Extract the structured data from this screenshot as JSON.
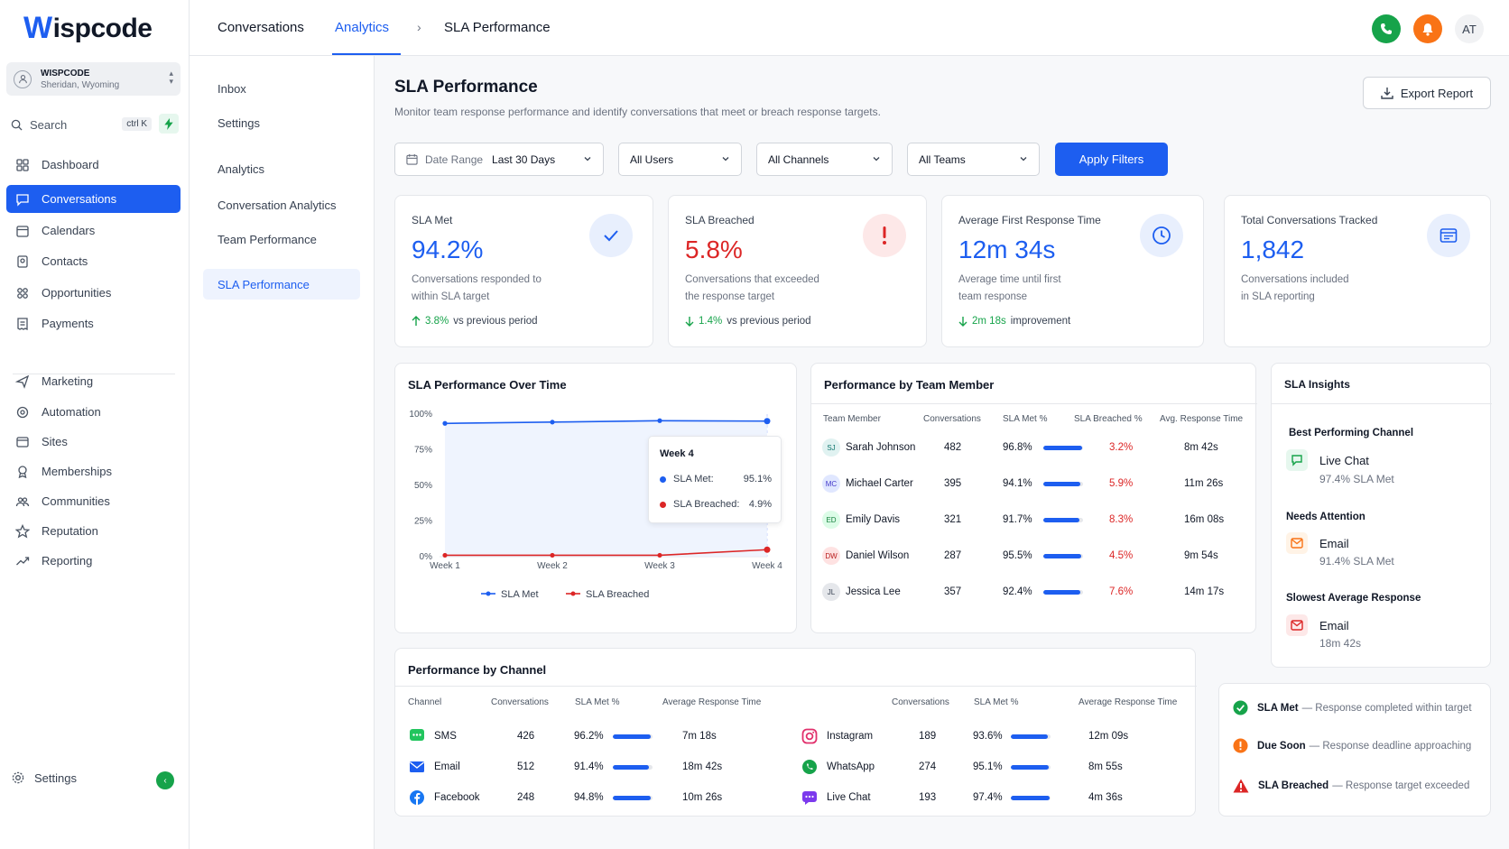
{
  "brand": {
    "logo_w": "W",
    "logo_rest": "ispcode",
    "primary_color": "#1d5ef0"
  },
  "account": {
    "name": "WISPCODE",
    "location": "Sheridan, Wyoming"
  },
  "search": {
    "label": "Search",
    "shortcut": "ctrl K"
  },
  "sidebar": {
    "items": [
      {
        "label": "Dashboard",
        "icon": "grid-icon"
      },
      {
        "label": "Conversations",
        "icon": "chat-icon",
        "active": true
      },
      {
        "label": "Calendars",
        "icon": "calendar-icon"
      },
      {
        "label": "Contacts",
        "icon": "contact-icon"
      },
      {
        "label": "Opportunities",
        "icon": "opportunities-icon"
      },
      {
        "label": "Payments",
        "icon": "receipt-icon"
      },
      {
        "label": "Marketing",
        "icon": "send-icon"
      },
      {
        "label": "Automation",
        "icon": "automation-icon"
      },
      {
        "label": "Sites",
        "icon": "sites-icon"
      },
      {
        "label": "Memberships",
        "icon": "award-icon"
      },
      {
        "label": "Communities",
        "icon": "people-icon"
      },
      {
        "label": "Reputation",
        "icon": "star-icon"
      },
      {
        "label": "Reporting",
        "icon": "trend-icon"
      }
    ],
    "settings_label": "Settings"
  },
  "topbar": {
    "tab_conversations": "Conversations",
    "tab_analytics": "Analytics",
    "breadcrumb_sep": "›",
    "breadcrumb_current": "SLA Performance",
    "avatar_initials": "AT"
  },
  "subnav": {
    "items": [
      "Inbox",
      "Settings",
      "Analytics",
      "Conversation Analytics",
      "Team Performance",
      "SLA Performance"
    ],
    "active": "SLA Performance"
  },
  "page": {
    "title": "SLA Performance",
    "subtitle": "Monitor team response performance and identify conversations that meet or breach response targets.",
    "export_label": "Export Report"
  },
  "filters": {
    "date_label": "Date Range",
    "date_value": "Last 30 Days",
    "users": "All Users",
    "channels": "All Channels",
    "teams": "All Teams",
    "apply_label": "Apply Filters"
  },
  "kpis": [
    {
      "label": "SLA Met",
      "value": "94.2%",
      "desc1": "Conversations responded to",
      "desc2": "within SLA target",
      "delta": "3.8%",
      "delta_text": "vs previous period",
      "color": "#1d5ef0"
    },
    {
      "label": "SLA Breached",
      "value": "5.8%",
      "desc1": "Conversations that exceeded",
      "desc2": "the response target",
      "delta": "1.4%",
      "delta_text": "vs previous period",
      "color": "#dc2626"
    },
    {
      "label": "Average First Response Time",
      "value": "12m 34s",
      "desc1": "Average time until first",
      "desc2": "team response",
      "delta": "2m 18s",
      "delta_text": "improvement",
      "color": "#1d5ef0"
    },
    {
      "label": "Total Conversations Tracked",
      "value": "1,842",
      "desc1": "Conversations included",
      "desc2": "in SLA reporting",
      "color": "#1d5ef0"
    }
  ],
  "chart_card": {
    "title": "SLA Performance Over Time"
  },
  "chart_data": {
    "type": "line",
    "title": "SLA Performance Over Time",
    "categories": [
      "Week 1",
      "Week 2",
      "Week 3",
      "Week 4"
    ],
    "y_ticks": [
      "100%",
      "75%",
      "50%",
      "25%",
      "0%"
    ],
    "ylim": [
      0,
      100
    ],
    "series": [
      {
        "name": "SLA Met",
        "values": [
          93.5,
          94.4,
          95.4,
          95.1
        ],
        "color": "#1d5ef0"
      },
      {
        "name": "SLA Breached",
        "values": [
          1.0,
          1.0,
          1.0,
          4.9
        ],
        "color": "#dc2626"
      }
    ],
    "legend": "bottom",
    "tooltip": {
      "title": "Week 4",
      "met_label": "SLA Met:",
      "met_value": "95.1%",
      "breached_label": "SLA Breached:",
      "breached_value": "4.9%"
    }
  },
  "team": {
    "title": "Performance by Team Member",
    "headers": [
      "Team Member",
      "Conversations",
      "SLA Met %",
      "SLA Breached %",
      "Avg. Response Time"
    ],
    "rows": [
      {
        "initials": "SJ",
        "name": "Sarah Johnson",
        "conversations": "482",
        "met": "96.8%",
        "met_fill": 0.968,
        "breached": "3.2%",
        "avg": "8m 42s",
        "bg": "#e0f2f1",
        "fg": "#0f766e"
      },
      {
        "initials": "MC",
        "name": "Michael Carter",
        "conversations": "395",
        "met": "94.1%",
        "met_fill": 0.941,
        "breached": "5.9%",
        "avg": "11m 26s",
        "bg": "#e0e7ff",
        "fg": "#4338ca"
      },
      {
        "initials": "ED",
        "name": "Emily Davis",
        "conversations": "321",
        "met": "91.7%",
        "met_fill": 0.917,
        "breached": "8.3%",
        "avg": "16m 08s",
        "bg": "#dcfce7",
        "fg": "#15803d"
      },
      {
        "initials": "DW",
        "name": "Daniel Wilson",
        "conversations": "287",
        "met": "95.5%",
        "met_fill": 0.955,
        "breached": "4.5%",
        "avg": "9m 54s",
        "bg": "#fee2e2",
        "fg": "#b91c1c"
      },
      {
        "initials": "JL",
        "name": "Jessica Lee",
        "conversations": "357",
        "met": "92.4%",
        "met_fill": 0.924,
        "breached": "7.6%",
        "avg": "14m 17s",
        "bg": "#e5e7eb",
        "fg": "#374151"
      }
    ]
  },
  "insights": {
    "title": "SLA Insights",
    "best_head": "Best Performing Channel",
    "best_name": "Live Chat",
    "best_value": "97.4% SLA Met",
    "attention_head": "Needs Attention",
    "attention_name": "Email",
    "attention_value": "91.4% SLA Met",
    "slowest_head": "Slowest Average Response",
    "slowest_name": "Email",
    "slowest_value": "18m 42s"
  },
  "channels": {
    "title": "Performance by Channel",
    "headers": [
      "Channel",
      "Conversations",
      "SLA Met %",
      "Average Response Time"
    ],
    "left": [
      {
        "name": "SMS",
        "conversations": "426",
        "met": "96.2%",
        "met_fill": 0.962,
        "avg": "7m 18s",
        "icon": "sms-icon",
        "color": "#22c55e"
      },
      {
        "name": "Email",
        "conversations": "512",
        "met": "91.4%",
        "met_fill": 0.914,
        "avg": "18m 42s",
        "icon": "email-icon",
        "color": "#1d5ef0"
      },
      {
        "name": "Facebook",
        "conversations": "248",
        "met": "94.8%",
        "met_fill": 0.948,
        "avg": "10m 26s",
        "icon": "facebook-icon",
        "color": "#1877f2"
      }
    ],
    "right": [
      {
        "name": "Instagram",
        "conversations": "189",
        "met": "93.6%",
        "met_fill": 0.936,
        "avg": "12m 09s",
        "icon": "instagram-icon",
        "color": "#e1306c"
      },
      {
        "name": "WhatsApp",
        "conversations": "274",
        "met": "95.1%",
        "met_fill": 0.951,
        "avg": "8m 55s",
        "icon": "whatsapp-icon",
        "color": "#16a34a"
      },
      {
        "name": "Live Chat",
        "conversations": "193",
        "met": "97.4%",
        "met_fill": 0.974,
        "avg": "4m 36s",
        "icon": "livechat-icon",
        "color": "#7c3aed"
      }
    ]
  },
  "legend": {
    "met_label": "SLA Met",
    "met_desc": "— Response completed within target",
    "soon_label": "Due Soon",
    "soon_desc": "— Response deadline approaching",
    "breached_label": "SLA Breached",
    "breached_desc": "— Response target exceeded"
  }
}
